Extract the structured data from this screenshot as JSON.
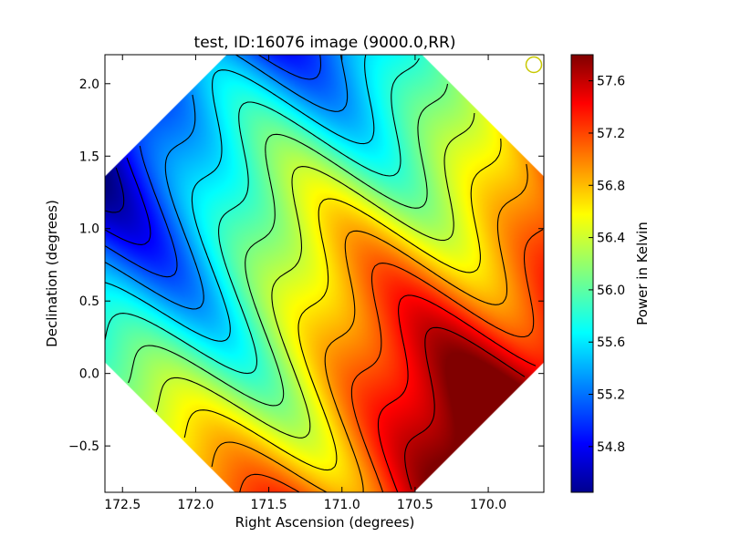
{
  "chart_data": {
    "type": "heatmap",
    "title": "test, ID:16076 image (9000.0,RR)",
    "xlabel": "Right Ascension (degrees)",
    "ylabel": "Declination (degrees)",
    "colorbar_label": "Power in Kelvin",
    "xlim": [
      172.62,
      169.62
    ],
    "ylim": [
      -0.82,
      2.2
    ],
    "x_ticks": [
      172.5,
      172.0,
      171.5,
      171.0,
      170.5,
      170.0
    ],
    "x_tick_labels": [
      "172.5",
      "172.0",
      "171.5",
      "171.0",
      "170.5",
      "170.0"
    ],
    "y_ticks": [
      -0.5,
      0.0,
      0.5,
      1.0,
      1.5,
      2.0
    ],
    "y_tick_labels": [
      "−0.5",
      "0.0",
      "0.5",
      "1.0",
      "1.5",
      "2.0"
    ],
    "color_range": [
      54.45,
      57.8
    ],
    "colorbar_ticks": [
      54.8,
      55.2,
      55.6,
      56.0,
      56.4,
      56.8,
      57.2,
      57.6
    ],
    "colorbar_tick_labels": [
      "54.8",
      "55.2",
      "55.6",
      "56.0",
      "56.4",
      "56.8",
      "57.2",
      "57.6"
    ],
    "colormap": "jet",
    "contour_levels": [
      54.6,
      54.85,
      55.1,
      55.35,
      55.6,
      55.85,
      56.1,
      56.35,
      56.6,
      56.85,
      57.1,
      57.35,
      57.6
    ],
    "contour_color": "#000000",
    "field_footprint": "rotated-square",
    "gradient": "increasing toward lower right (decreasing RA and Dec)",
    "beam_marker_color": "#c8c800"
  }
}
